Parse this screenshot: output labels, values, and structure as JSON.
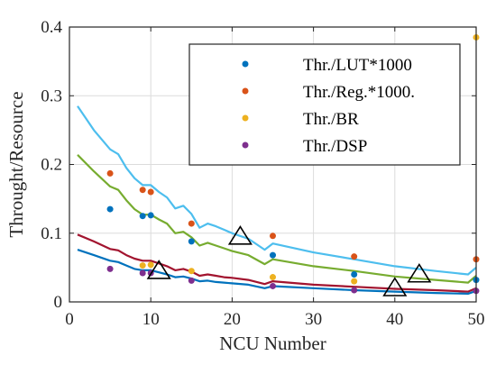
{
  "chart_data": {
    "type": "scatter",
    "title": "",
    "xlabel": "NCU Number",
    "ylabel": "Throught/Resource",
    "xlim": [
      0,
      50
    ],
    "ylim": [
      0,
      0.4
    ],
    "xticks": [
      "0",
      "10",
      "20",
      "30",
      "40",
      "50"
    ],
    "yticks": [
      "0",
      "0.1",
      "0.2",
      "0.3",
      "0.4"
    ],
    "grid": true,
    "legend_position": "top-right",
    "series": [
      {
        "name": "Thr./LUT*1000",
        "color": "#0072BD",
        "points": [
          [
            5,
            0.135
          ],
          [
            9,
            0.125
          ],
          [
            10,
            0.126
          ],
          [
            15,
            0.088
          ],
          [
            25,
            0.068
          ],
          [
            35,
            0.04
          ],
          [
            50,
            0.032
          ]
        ]
      },
      {
        "name": "Thr./Reg.*1000.",
        "color": "#D95319",
        "points": [
          [
            5,
            0.187
          ],
          [
            9,
            0.163
          ],
          [
            10,
            0.16
          ],
          [
            15,
            0.114
          ],
          [
            25,
            0.096
          ],
          [
            35,
            0.066
          ],
          [
            50,
            0.062
          ]
        ]
      },
      {
        "name": "Thr./BR",
        "color": "#EDB120",
        "points": [
          [
            9,
            0.053
          ],
          [
            10,
            0.054
          ],
          [
            15,
            0.045
          ],
          [
            25,
            0.036
          ],
          [
            35,
            0.03
          ],
          [
            50,
            0.385
          ]
        ]
      },
      {
        "name": "Thr./DSP",
        "color": "#7E2F8E",
        "points": [
          [
            5,
            0.048
          ],
          [
            9,
            0.042
          ],
          [
            10,
            0.042
          ],
          [
            15,
            0.031
          ],
          [
            25,
            0.023
          ],
          [
            35,
            0.017
          ],
          [
            50,
            0.016
          ]
        ]
      }
    ],
    "trend_lines": [
      {
        "color": "#4DBEEE",
        "points": [
          [
            1,
            0.285
          ],
          [
            3,
            0.25
          ],
          [
            5,
            0.222
          ],
          [
            6,
            0.215
          ],
          [
            7,
            0.195
          ],
          [
            8,
            0.18
          ],
          [
            9,
            0.17
          ],
          [
            10,
            0.17
          ],
          [
            11,
            0.16
          ],
          [
            12,
            0.152
          ],
          [
            13,
            0.136
          ],
          [
            14,
            0.14
          ],
          [
            15,
            0.128
          ],
          [
            16,
            0.108
          ],
          [
            17,
            0.114
          ],
          [
            18,
            0.11
          ],
          [
            19,
            0.105
          ],
          [
            20,
            0.1
          ],
          [
            22,
            0.092
          ],
          [
            24,
            0.076
          ],
          [
            25,
            0.085
          ],
          [
            30,
            0.072
          ],
          [
            35,
            0.062
          ],
          [
            40,
            0.052
          ],
          [
            45,
            0.045
          ],
          [
            49,
            0.04
          ],
          [
            50,
            0.05
          ]
        ]
      },
      {
        "color": "#77AC30",
        "points": [
          [
            1,
            0.214
          ],
          [
            3,
            0.19
          ],
          [
            5,
            0.168
          ],
          [
            6,
            0.163
          ],
          [
            7,
            0.148
          ],
          [
            8,
            0.135
          ],
          [
            9,
            0.127
          ],
          [
            10,
            0.127
          ],
          [
            11,
            0.12
          ],
          [
            12,
            0.114
          ],
          [
            13,
            0.1
          ],
          [
            14,
            0.102
          ],
          [
            15,
            0.094
          ],
          [
            16,
            0.082
          ],
          [
            17,
            0.086
          ],
          [
            18,
            0.082
          ],
          [
            19,
            0.078
          ],
          [
            20,
            0.074
          ],
          [
            22,
            0.068
          ],
          [
            24,
            0.055
          ],
          [
            25,
            0.062
          ],
          [
            30,
            0.052
          ],
          [
            35,
            0.045
          ],
          [
            40,
            0.037
          ],
          [
            45,
            0.032
          ],
          [
            49,
            0.028
          ],
          [
            50,
            0.038
          ]
        ]
      },
      {
        "color": "#A2142F",
        "points": [
          [
            1,
            0.098
          ],
          [
            3,
            0.088
          ],
          [
            5,
            0.077
          ],
          [
            6,
            0.075
          ],
          [
            7,
            0.068
          ],
          [
            8,
            0.063
          ],
          [
            9,
            0.06
          ],
          [
            10,
            0.06
          ],
          [
            11,
            0.056
          ],
          [
            12,
            0.052
          ],
          [
            13,
            0.046
          ],
          [
            14,
            0.048
          ],
          [
            15,
            0.044
          ],
          [
            16,
            0.038
          ],
          [
            17,
            0.04
          ],
          [
            18,
            0.038
          ],
          [
            19,
            0.036
          ],
          [
            20,
            0.035
          ],
          [
            22,
            0.032
          ],
          [
            24,
            0.026
          ],
          [
            25,
            0.03
          ],
          [
            30,
            0.025
          ],
          [
            35,
            0.022
          ],
          [
            40,
            0.019
          ],
          [
            45,
            0.017
          ],
          [
            49,
            0.015
          ],
          [
            50,
            0.02
          ]
        ]
      },
      {
        "color": "#0072BD",
        "points": [
          [
            1,
            0.076
          ],
          [
            3,
            0.068
          ],
          [
            5,
            0.06
          ],
          [
            6,
            0.058
          ],
          [
            7,
            0.053
          ],
          [
            8,
            0.048
          ],
          [
            9,
            0.046
          ],
          [
            10,
            0.046
          ],
          [
            11,
            0.043
          ],
          [
            12,
            0.04
          ],
          [
            13,
            0.036
          ],
          [
            14,
            0.037
          ],
          [
            15,
            0.034
          ],
          [
            16,
            0.03
          ],
          [
            17,
            0.031
          ],
          [
            18,
            0.029
          ],
          [
            19,
            0.028
          ],
          [
            20,
            0.027
          ],
          [
            22,
            0.025
          ],
          [
            24,
            0.02
          ],
          [
            25,
            0.023
          ],
          [
            30,
            0.02
          ],
          [
            35,
            0.017
          ],
          [
            40,
            0.015
          ],
          [
            45,
            0.013
          ],
          [
            49,
            0.012
          ],
          [
            50,
            0.016
          ]
        ]
      }
    ],
    "markers": {
      "shape": "triangle",
      "color": "#000000",
      "points": [
        [
          11,
          0.045
        ],
        [
          21,
          0.095
        ],
        [
          40,
          0.02
        ],
        [
          43,
          0.04
        ]
      ]
    }
  }
}
